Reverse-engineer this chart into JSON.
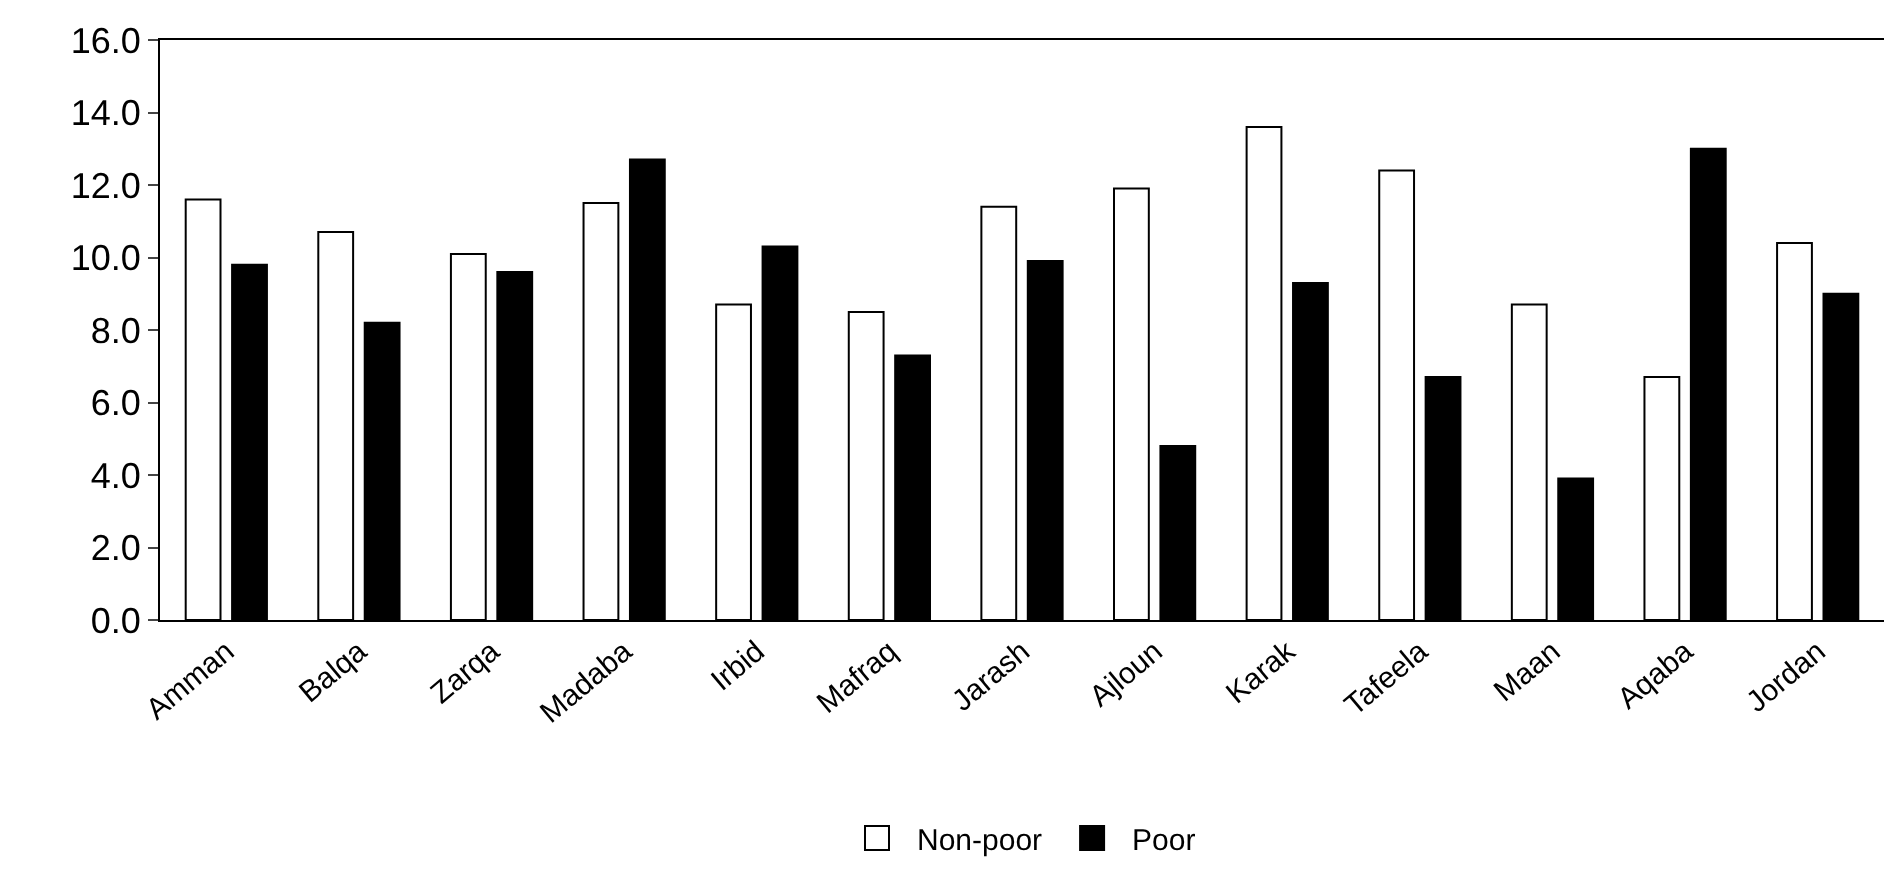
{
  "chart_data": {
    "type": "bar",
    "categories": [
      "Amman",
      "Balqa",
      "Zarqa",
      "Madaba",
      "Irbid",
      "Mafraq",
      "Jarash",
      "Ajloun",
      "Karak",
      "Tafeela",
      "Maan",
      "Aqaba",
      "Jordan"
    ],
    "series": [
      {
        "name": "Non-poor",
        "color": "#ffffff",
        "values": [
          11.6,
          10.7,
          10.1,
          11.5,
          8.7,
          8.5,
          11.4,
          11.9,
          13.6,
          12.4,
          8.7,
          6.7,
          10.4
        ]
      },
      {
        "name": "Poor",
        "color": "#000000",
        "values": [
          9.8,
          8.2,
          9.6,
          12.7,
          10.3,
          7.3,
          9.9,
          4.8,
          9.3,
          6.7,
          3.9,
          13.0,
          9.0
        ]
      }
    ],
    "ylim": [
      0,
      16
    ],
    "yticks": [
      {
        "value": 0,
        "label": "0.0"
      },
      {
        "value": 2,
        "label": "2.0"
      },
      {
        "value": 4,
        "label": "4.0"
      },
      {
        "value": 6,
        "label": "6.0"
      },
      {
        "value": 8,
        "label": "8.0"
      },
      {
        "value": 10,
        "label": "10.0"
      },
      {
        "value": 12,
        "label": "12.0"
      },
      {
        "value": 14,
        "label": "14.0"
      },
      {
        "value": 16,
        "label": "16.0"
      }
    ],
    "legend": "bottom"
  }
}
